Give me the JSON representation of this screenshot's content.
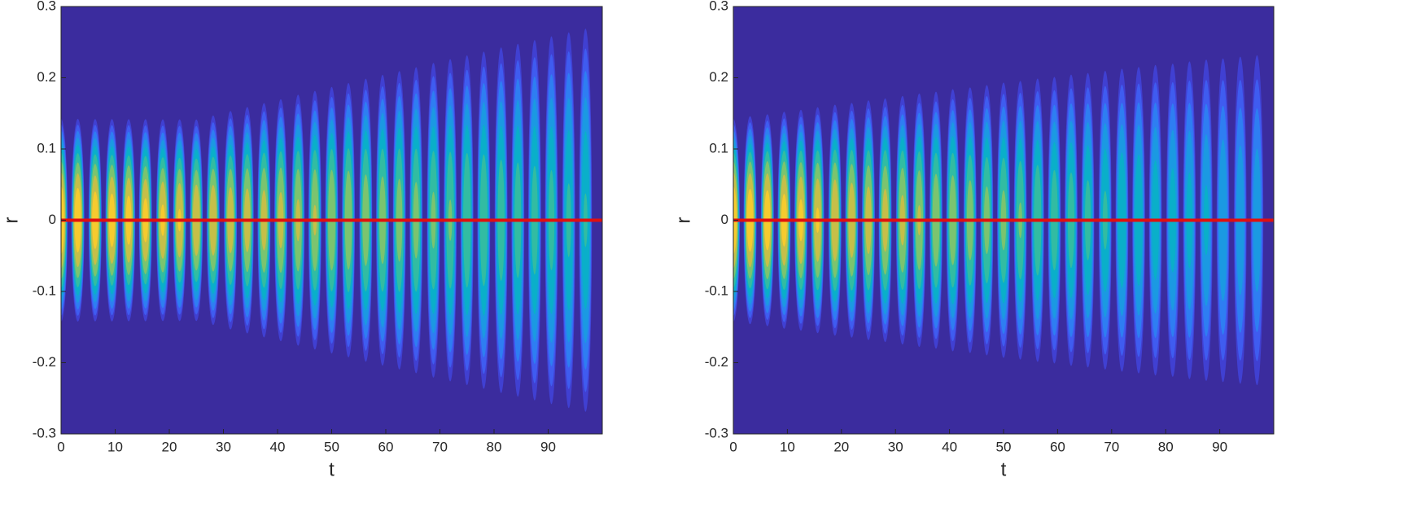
{
  "chart_data": [
    {
      "type": "contour",
      "xlabel": "t",
      "ylabel": "r",
      "xlim": [
        0,
        100
      ],
      "ylim": [
        -0.3,
        0.3
      ],
      "xticks": [
        0,
        10,
        20,
        30,
        40,
        50,
        60,
        70,
        80,
        90
      ],
      "yticks": [
        -0.3,
        -0.2,
        -0.1,
        0,
        0.1,
        0.2,
        0.3
      ],
      "x": [
        0,
        3.1,
        6.3,
        9.4,
        12.5,
        15.6,
        18.8,
        21.9,
        25,
        28.1,
        31.3,
        34.4,
        37.5,
        40.6,
        43.8,
        46.9,
        50,
        53.1,
        56.3,
        59.4,
        62.5,
        65.6,
        68.8,
        71.9,
        75,
        78.1,
        81.3,
        84.4,
        87.5,
        90.6,
        93.8,
        96.9
      ],
      "extent": [
        0.15,
        0.15,
        0.15,
        0.15,
        0.15,
        0.15,
        0.15,
        0.15,
        0.15,
        0.156,
        0.163,
        0.169,
        0.175,
        0.181,
        0.188,
        0.194,
        0.2,
        0.206,
        0.213,
        0.219,
        0.225,
        0.231,
        0.238,
        0.244,
        0.25,
        0.256,
        0.263,
        0.269,
        0.275,
        0.281,
        0.288,
        0.294
      ],
      "peak": [
        1,
        0.99,
        0.97,
        0.96,
        0.95,
        0.94,
        0.92,
        0.91,
        0.9,
        0.89,
        0.87,
        0.86,
        0.85,
        0.84,
        0.82,
        0.81,
        0.8,
        0.79,
        0.77,
        0.76,
        0.75,
        0.74,
        0.72,
        0.71,
        0.7,
        0.69,
        0.67,
        0.66,
        0.65,
        0.64,
        0.62,
        0.61
      ],
      "levels": [
        0.1,
        0.2,
        0.3,
        0.4,
        0.5,
        0.6,
        0.7,
        0.8,
        0.9
      ],
      "background": "#3b2c9e",
      "colors": [
        "#4040d2",
        "#3f5cf0",
        "#2e7ef2",
        "#1b99e2",
        "#0aafc9",
        "#32bca2",
        "#7bc46f",
        "#c6bf48",
        "#f6cb2e"
      ],
      "hline": 0,
      "hline_color": "#e01010"
    },
    {
      "type": "contour",
      "xlabel": "t",
      "ylabel": "r",
      "xlim": [
        0,
        100
      ],
      "ylim": [
        -0.3,
        0.3
      ],
      "xticks": [
        0,
        10,
        20,
        30,
        40,
        50,
        60,
        70,
        80,
        90
      ],
      "yticks": [
        -0.3,
        -0.2,
        -0.1,
        0,
        0.1,
        0.2,
        0.3
      ],
      "x": [
        0,
        3.1,
        6.3,
        9.4,
        12.5,
        15.6,
        18.8,
        21.9,
        25,
        28.1,
        31.3,
        34.4,
        37.5,
        40.6,
        43.8,
        46.9,
        50,
        53.1,
        56.3,
        59.4,
        62.5,
        65.6,
        68.8,
        71.9,
        75,
        78.1,
        81.3,
        84.4,
        87.5,
        90.6,
        93.8,
        96.9
      ],
      "extent": [
        0.15,
        0.154,
        0.157,
        0.161,
        0.164,
        0.168,
        0.172,
        0.175,
        0.179,
        0.182,
        0.186,
        0.19,
        0.193,
        0.197,
        0.2,
        0.204,
        0.208,
        0.211,
        0.215,
        0.218,
        0.222,
        0.225,
        0.229,
        0.233,
        0.236,
        0.24,
        0.243,
        0.247,
        0.251,
        0.254,
        0.258,
        0.261
      ],
      "peak": [
        1,
        0.98,
        0.97,
        0.95,
        0.93,
        0.91,
        0.9,
        0.88,
        0.86,
        0.85,
        0.83,
        0.81,
        0.79,
        0.78,
        0.76,
        0.74,
        0.73,
        0.71,
        0.69,
        0.67,
        0.66,
        0.64,
        0.62,
        0.6,
        0.59,
        0.57,
        0.55,
        0.54,
        0.52,
        0.5,
        0.48,
        0.47
      ],
      "levels": [
        0.1,
        0.2,
        0.3,
        0.4,
        0.5,
        0.6,
        0.7,
        0.8,
        0.9
      ],
      "background": "#3b2c9e",
      "colors": [
        "#4040d2",
        "#3f5cf0",
        "#2e7ef2",
        "#1b99e2",
        "#0aafc9",
        "#32bca2",
        "#7bc46f",
        "#c6bf48",
        "#f6cb2e"
      ],
      "hline": 0,
      "hline_color": "#e01010"
    }
  ]
}
